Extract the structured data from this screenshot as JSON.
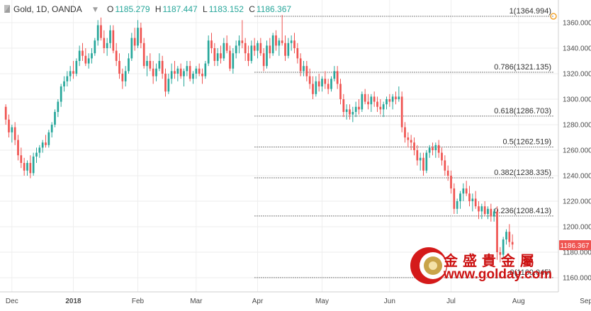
{
  "header": {
    "symbol": "Gold, 1D, OANDA",
    "o_label": "O",
    "o_value": "1185.279",
    "h_label": "H",
    "h_value": "1187.447",
    "l_label": "L",
    "l_value": "1183.152",
    "c_label": "C",
    "c_value": "1186.367",
    "value_color": "#26a69a"
  },
  "price_badge": {
    "value": "1186.367",
    "color": "#ef5350"
  },
  "watermark": {
    "cn_text": "金 盛 貴 金 屬",
    "url": "www.golday.com",
    "color": "#cc1111"
  },
  "colors": {
    "up": "#26a69a",
    "down": "#ef5350",
    "grid": "#eeeeee",
    "fib_line": "#555555"
  },
  "chart_data": {
    "type": "candlestick",
    "title": "Gold, 1D, OANDA",
    "ylim": [
      1150,
      1375
    ],
    "y_ticks": [
      "1160.000",
      "1180.000",
      "1200.000",
      "1220.000",
      "1240.000",
      "1260.000",
      "1280.000",
      "1300.000",
      "1320.000",
      "1340.000",
      "1360.000"
    ],
    "x_ticks": [
      {
        "label": "Dec",
        "index": 2
      },
      {
        "label": "2018",
        "index": 22
      },
      {
        "label": "Feb",
        "index": 43
      },
      {
        "label": "Mar",
        "index": 62
      },
      {
        "label": "Apr",
        "index": 82
      },
      {
        "label": "May",
        "index": 103
      },
      {
        "label": "Jun",
        "index": 125
      },
      {
        "label": "Jul",
        "index": 145
      },
      {
        "label": "Aug",
        "index": 167
      },
      {
        "label": "Sep",
        "index": 189
      }
    ],
    "fib_levels": [
      {
        "label": "1(1364.994)",
        "value": 1364.994
      },
      {
        "label": "0.786(1321.135)",
        "value": 1321.135
      },
      {
        "label": "0.618(1286.703)",
        "value": 1286.703
      },
      {
        "label": "0.5(1262.519)",
        "value": 1262.519
      },
      {
        "label": "0.382(1238.335)",
        "value": 1238.335
      },
      {
        "label": "0.236(1208.413)",
        "value": 1208.413
      },
      {
        "label": "0(1160.045)",
        "value": 1160.045
      }
    ],
    "ohlc": [
      [
        1294,
        1296,
        1280,
        1284
      ],
      [
        1284,
        1288,
        1270,
        1274
      ],
      [
        1274,
        1280,
        1266,
        1278
      ],
      [
        1278,
        1282,
        1264,
        1268
      ],
      [
        1268,
        1272,
        1252,
        1256
      ],
      [
        1256,
        1262,
        1246,
        1250
      ],
      [
        1250,
        1254,
        1240,
        1244
      ],
      [
        1244,
        1252,
        1240,
        1250
      ],
      [
        1250,
        1256,
        1238,
        1242
      ],
      [
        1242,
        1258,
        1240,
        1255
      ],
      [
        1255,
        1262,
        1250,
        1258
      ],
      [
        1258,
        1264,
        1254,
        1262
      ],
      [
        1262,
        1268,
        1258,
        1266
      ],
      [
        1266,
        1272,
        1262,
        1264
      ],
      [
        1264,
        1276,
        1262,
        1274
      ],
      [
        1274,
        1282,
        1270,
        1280
      ],
      [
        1280,
        1292,
        1278,
        1290
      ],
      [
        1290,
        1300,
        1286,
        1298
      ],
      [
        1298,
        1312,
        1294,
        1310
      ],
      [
        1310,
        1318,
        1306,
        1314
      ],
      [
        1314,
        1322,
        1310,
        1318
      ],
      [
        1318,
        1326,
        1314,
        1322
      ],
      [
        1322,
        1330,
        1316,
        1320
      ],
      [
        1320,
        1332,
        1318,
        1330
      ],
      [
        1330,
        1342,
        1326,
        1338
      ],
      [
        1338,
        1344,
        1330,
        1334
      ],
      [
        1334,
        1340,
        1326,
        1328
      ],
      [
        1328,
        1336,
        1324,
        1332
      ],
      [
        1332,
        1340,
        1328,
        1336
      ],
      [
        1336,
        1348,
        1334,
        1346
      ],
      [
        1346,
        1362,
        1342,
        1358
      ],
      [
        1358,
        1364,
        1346,
        1348
      ],
      [
        1348,
        1354,
        1336,
        1340
      ],
      [
        1340,
        1348,
        1334,
        1344
      ],
      [
        1344,
        1358,
        1340,
        1354
      ],
      [
        1354,
        1358,
        1336,
        1338
      ],
      [
        1338,
        1344,
        1326,
        1330
      ],
      [
        1330,
        1336,
        1316,
        1320
      ],
      [
        1320,
        1324,
        1308,
        1314
      ],
      [
        1314,
        1326,
        1310,
        1322
      ],
      [
        1322,
        1336,
        1320,
        1332
      ],
      [
        1332,
        1352,
        1330,
        1348
      ],
      [
        1348,
        1356,
        1338,
        1342
      ],
      [
        1342,
        1362,
        1340,
        1356
      ],
      [
        1356,
        1360,
        1340,
        1344
      ],
      [
        1344,
        1348,
        1324,
        1326
      ],
      [
        1326,
        1334,
        1318,
        1330
      ],
      [
        1330,
        1336,
        1322,
        1324
      ],
      [
        1324,
        1330,
        1312,
        1318
      ],
      [
        1318,
        1328,
        1314,
        1324
      ],
      [
        1324,
        1336,
        1322,
        1330
      ],
      [
        1330,
        1334,
        1316,
        1320
      ],
      [
        1320,
        1324,
        1302,
        1306
      ],
      [
        1306,
        1320,
        1304,
        1316
      ],
      [
        1316,
        1328,
        1312,
        1322
      ],
      [
        1322,
        1330,
        1316,
        1320
      ],
      [
        1320,
        1326,
        1314,
        1324
      ],
      [
        1324,
        1328,
        1316,
        1318
      ],
      [
        1318,
        1324,
        1310,
        1322
      ],
      [
        1322,
        1330,
        1318,
        1326
      ],
      [
        1326,
        1330,
        1314,
        1316
      ],
      [
        1316,
        1322,
        1312,
        1320
      ],
      [
        1320,
        1326,
        1316,
        1324
      ],
      [
        1324,
        1328,
        1318,
        1320
      ],
      [
        1320,
        1324,
        1312,
        1318
      ],
      [
        1318,
        1330,
        1316,
        1328
      ],
      [
        1328,
        1350,
        1326,
        1346
      ],
      [
        1346,
        1352,
        1336,
        1340
      ],
      [
        1340,
        1344,
        1326,
        1330
      ],
      [
        1330,
        1340,
        1326,
        1336
      ],
      [
        1336,
        1342,
        1328,
        1332
      ],
      [
        1332,
        1348,
        1330,
        1344
      ],
      [
        1344,
        1350,
        1336,
        1338
      ],
      [
        1338,
        1342,
        1322,
        1324
      ],
      [
        1324,
        1340,
        1320,
        1336
      ],
      [
        1336,
        1346,
        1332,
        1342
      ],
      [
        1342,
        1350,
        1336,
        1346
      ],
      [
        1346,
        1362,
        1340,
        1344
      ],
      [
        1344,
        1348,
        1330,
        1336
      ],
      [
        1336,
        1342,
        1326,
        1330
      ],
      [
        1330,
        1346,
        1328,
        1342
      ],
      [
        1342,
        1348,
        1334,
        1338
      ],
      [
        1338,
        1346,
        1332,
        1344
      ],
      [
        1344,
        1348,
        1334,
        1336
      ],
      [
        1336,
        1340,
        1322,
        1326
      ],
      [
        1326,
        1346,
        1324,
        1342
      ],
      [
        1342,
        1348,
        1332,
        1336
      ],
      [
        1336,
        1352,
        1334,
        1350
      ],
      [
        1350,
        1354,
        1338,
        1342
      ],
      [
        1342,
        1348,
        1334,
        1346
      ],
      [
        1346,
        1366,
        1342,
        1344
      ],
      [
        1344,
        1350,
        1330,
        1334
      ],
      [
        1334,
        1348,
        1332,
        1344
      ],
      [
        1344,
        1350,
        1338,
        1346
      ],
      [
        1346,
        1352,
        1336,
        1340
      ],
      [
        1340,
        1344,
        1328,
        1332
      ],
      [
        1332,
        1336,
        1318,
        1322
      ],
      [
        1322,
        1330,
        1318,
        1326
      ],
      [
        1326,
        1330,
        1314,
        1318
      ],
      [
        1318,
        1324,
        1308,
        1312
      ],
      [
        1312,
        1318,
        1300,
        1304
      ],
      [
        1304,
        1318,
        1302,
        1314
      ],
      [
        1314,
        1320,
        1306,
        1310
      ],
      [
        1310,
        1318,
        1306,
        1316
      ],
      [
        1316,
        1322,
        1308,
        1312
      ],
      [
        1312,
        1316,
        1304,
        1308
      ],
      [
        1308,
        1318,
        1306,
        1316
      ],
      [
        1316,
        1326,
        1314,
        1322
      ],
      [
        1322,
        1326,
        1308,
        1312
      ],
      [
        1312,
        1316,
        1296,
        1300
      ],
      [
        1300,
        1304,
        1286,
        1290
      ],
      [
        1290,
        1296,
        1284,
        1292
      ],
      [
        1292,
        1296,
        1284,
        1288
      ],
      [
        1288,
        1294,
        1282,
        1290
      ],
      [
        1290,
        1298,
        1286,
        1294
      ],
      [
        1294,
        1300,
        1288,
        1292
      ],
      [
        1292,
        1306,
        1290,
        1304
      ],
      [
        1304,
        1308,
        1296,
        1298
      ],
      [
        1298,
        1304,
        1292,
        1296
      ],
      [
        1296,
        1304,
        1290,
        1302
      ],
      [
        1302,
        1306,
        1294,
        1298
      ],
      [
        1298,
        1302,
        1290,
        1294
      ],
      [
        1294,
        1300,
        1288,
        1292
      ],
      [
        1292,
        1298,
        1286,
        1296
      ],
      [
        1296,
        1302,
        1292,
        1300
      ],
      [
        1300,
        1304,
        1294,
        1298
      ],
      [
        1298,
        1304,
        1292,
        1302
      ],
      [
        1302,
        1306,
        1296,
        1300
      ],
      [
        1300,
        1310,
        1298,
        1302
      ],
      [
        1302,
        1306,
        1274,
        1278
      ],
      [
        1278,
        1282,
        1266,
        1270
      ],
      [
        1270,
        1274,
        1262,
        1268
      ],
      [
        1268,
        1272,
        1260,
        1266
      ],
      [
        1266,
        1270,
        1256,
        1260
      ],
      [
        1260,
        1264,
        1248,
        1252
      ],
      [
        1252,
        1258,
        1244,
        1254
      ],
      [
        1254,
        1258,
        1240,
        1244
      ],
      [
        1244,
        1260,
        1242,
        1258
      ],
      [
        1258,
        1264,
        1254,
        1262
      ],
      [
        1262,
        1266,
        1256,
        1260
      ],
      [
        1260,
        1266,
        1254,
        1264
      ],
      [
        1264,
        1268,
        1254,
        1258
      ],
      [
        1258,
        1262,
        1248,
        1252
      ],
      [
        1252,
        1256,
        1240,
        1244
      ],
      [
        1244,
        1248,
        1236,
        1240
      ],
      [
        1240,
        1244,
        1226,
        1230
      ],
      [
        1230,
        1234,
        1210,
        1214
      ],
      [
        1214,
        1222,
        1210,
        1220
      ],
      [
        1220,
        1228,
        1214,
        1226
      ],
      [
        1226,
        1234,
        1220,
        1230
      ],
      [
        1230,
        1236,
        1224,
        1226
      ],
      [
        1226,
        1232,
        1216,
        1220
      ],
      [
        1220,
        1226,
        1212,
        1222
      ],
      [
        1222,
        1228,
        1214,
        1216
      ],
      [
        1216,
        1220,
        1206,
        1212
      ],
      [
        1212,
        1218,
        1206,
        1216
      ],
      [
        1216,
        1220,
        1208,
        1210
      ],
      [
        1210,
        1216,
        1206,
        1214
      ],
      [
        1214,
        1218,
        1204,
        1208
      ],
      [
        1208,
        1214,
        1204,
        1212
      ],
      [
        1212,
        1216,
        1174,
        1180
      ],
      [
        1180,
        1184,
        1172,
        1178
      ],
      [
        1178,
        1192,
        1176,
        1190
      ],
      [
        1190,
        1198,
        1186,
        1196
      ],
      [
        1196,
        1202,
        1184,
        1188
      ],
      [
        1188,
        1194,
        1182,
        1186
      ]
    ]
  }
}
